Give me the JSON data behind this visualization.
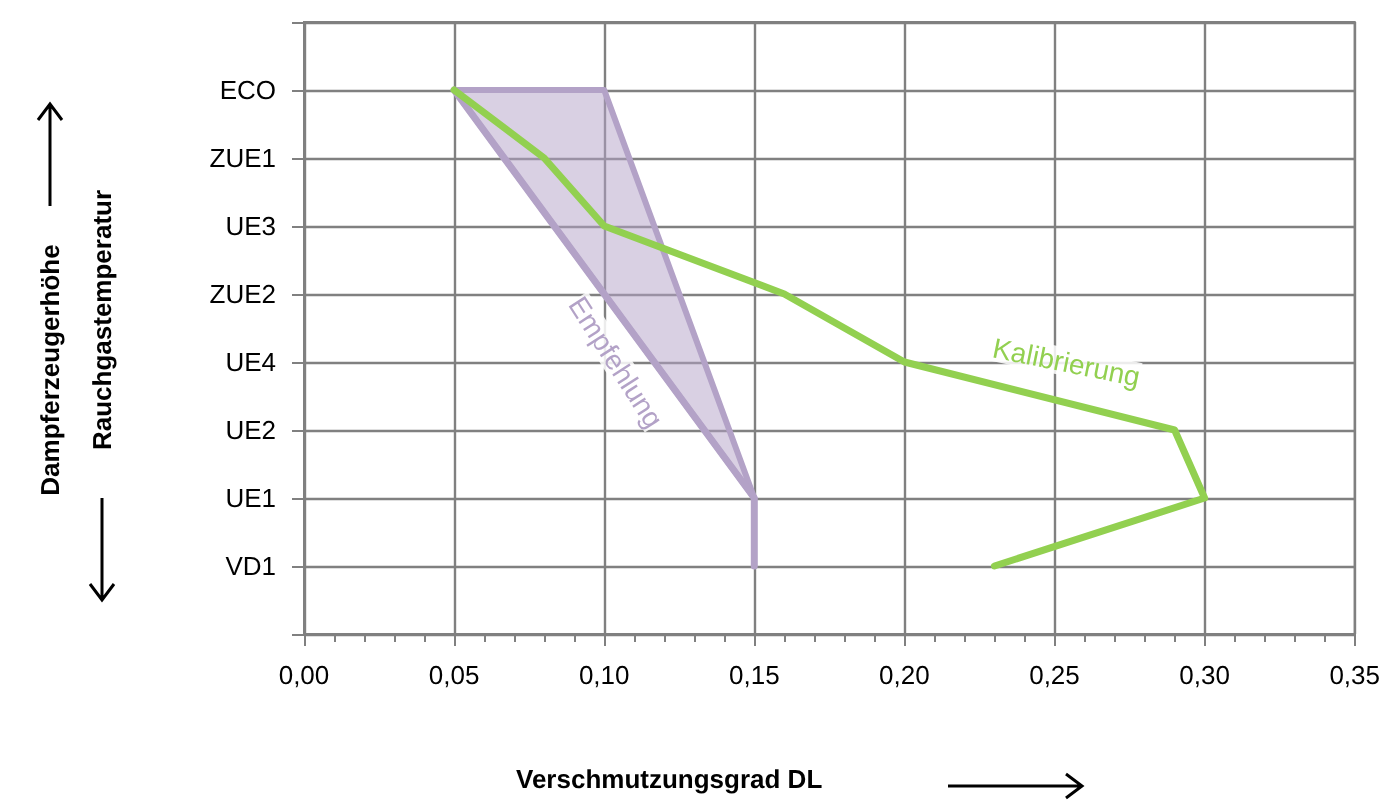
{
  "chart_data": {
    "type": "line",
    "orientation": "horizontal",
    "xlabel": "Verschmutzungsgrad DL",
    "ylabel": "Rauchgastemperatur",
    "annotations": [
      "Dampferzeugerhöhe"
    ],
    "categories": [
      null,
      "ECO",
      "ZUE1",
      "UE3",
      "ZUE2",
      "UE4",
      "UE2",
      "UE1",
      "VD1",
      null
    ],
    "series": [
      {
        "name": "Empfehlung",
        "color": "#b3a2c7",
        "values": [
          null,
          0.05,
          null,
          null,
          null,
          null,
          null,
          0.15,
          0.15,
          null
        ],
        "lower": [
          null,
          0.05,
          null,
          null,
          null,
          null,
          null,
          0.15,
          null,
          null
        ],
        "upper": [
          null,
          0.1,
          null,
          null,
          null,
          null,
          null,
          0.15,
          null,
          null
        ]
      },
      {
        "name": "Kalibrierung",
        "color": "#92d050",
        "values": [
          null,
          0.05,
          0.08,
          0.1,
          0.16,
          0.2,
          0.29,
          0.3,
          0.23,
          null
        ]
      }
    ],
    "xlim": [
      0,
      0.35
    ],
    "xticks": [
      {
        "value": 0,
        "label": "0,00"
      },
      {
        "value": 0.05,
        "label": "0,05"
      },
      {
        "value": 0.1,
        "label": "0,10"
      },
      {
        "value": 0.15,
        "label": "0,15"
      },
      {
        "value": 0.2,
        "label": "0,20"
      },
      {
        "value": 0.25,
        "label": "0,25"
      },
      {
        "value": 0.3,
        "label": "0,30"
      },
      {
        "value": 0.35,
        "label": "0,35"
      }
    ],
    "grid": true,
    "legend": false,
    "marker": "none",
    "line_style": "solid"
  }
}
